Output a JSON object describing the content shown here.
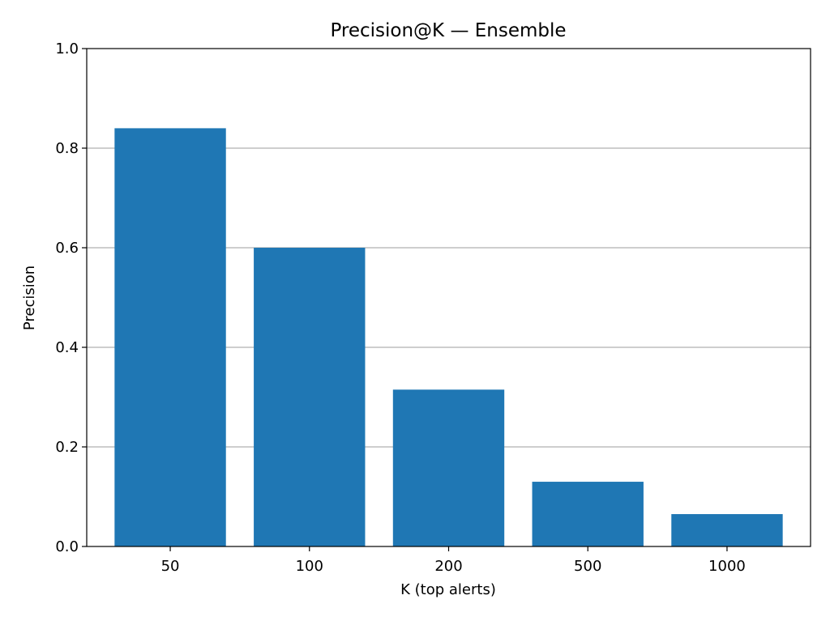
{
  "chart_data": {
    "type": "bar",
    "title": "Precision@K — Ensemble",
    "xlabel": "K (top alerts)",
    "ylabel": "Precision",
    "categories": [
      "50",
      "100",
      "200",
      "500",
      "1000"
    ],
    "values": [
      0.84,
      0.6,
      0.315,
      0.13,
      0.065
    ],
    "ylim": [
      0,
      1.0
    ],
    "yticks": [
      "0.0",
      "0.2",
      "0.4",
      "0.6",
      "0.8",
      "1.0"
    ],
    "grid": "y-major",
    "legend": "none",
    "bar_color": "#1f77b4",
    "grid_color": "#b0b0b0"
  }
}
